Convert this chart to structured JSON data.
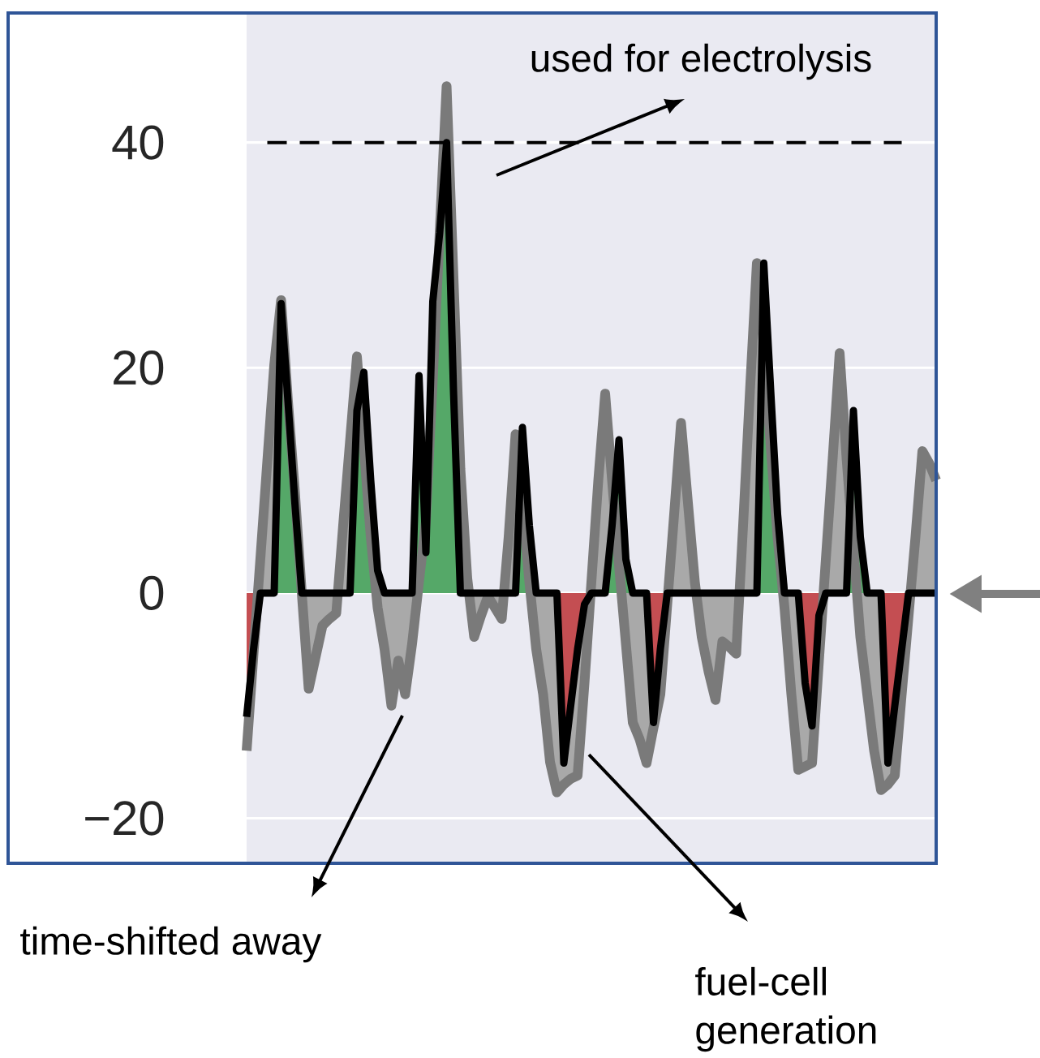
{
  "chart_data": {
    "type": "line",
    "categories": [
      null,
      null,
      null,
      null,
      null,
      null,
      null,
      null,
      null,
      null,
      null,
      null,
      null,
      null,
      null,
      null,
      null,
      null,
      null,
      null,
      null,
      null,
      null,
      null,
      null,
      null,
      null,
      null,
      null,
      null,
      null,
      null,
      null,
      null,
      null,
      null,
      null,
      null,
      null,
      null,
      null,
      null,
      null,
      null,
      null,
      null,
      null,
      null,
      null,
      null,
      null,
      null,
      null,
      null,
      null,
      null,
      null,
      null,
      null,
      null,
      null,
      null,
      null,
      null,
      null,
      null,
      null,
      null,
      null,
      null,
      null,
      null,
      null,
      null,
      null,
      null,
      null,
      null,
      null,
      null,
      null,
      null,
      null,
      null,
      null,
      null,
      null,
      null,
      null,
      null,
      null,
      null,
      null,
      null,
      null,
      null,
      null,
      null,
      null,
      null,
      null
    ],
    "ylim": [
      -24,
      51.5
    ],
    "yticks": [
      {
        "value": -20,
        "label": "−20"
      },
      {
        "value": 0,
        "label": "0"
      },
      {
        "value": 20,
        "label": "20"
      },
      {
        "value": 40,
        "label": "40"
      }
    ],
    "grid": "y",
    "ref_lines": [
      {
        "axis": "y",
        "value": 40,
        "color": "#000000",
        "line_style": "dashed"
      }
    ],
    "annotations": [
      "used for electrolysis",
      "time-shifted away",
      "fuel-cell generation"
    ],
    "series": [
      {
        "type": "area",
        "color": "#a9a9a9",
        "values": [
          -14,
          -5.4,
          3.1,
          11.7,
          20.2,
          26,
          17,
          9,
          0,
          -8.5,
          -5.7,
          -2.9,
          -2.3,
          -1.8,
          6,
          13.5,
          21,
          13,
          5,
          -1.3,
          -5,
          -10,
          -6,
          -9,
          -4.5,
          1,
          6.4,
          19,
          32,
          45,
          28,
          11,
          1.3,
          -3.9,
          -2,
          -0.3,
          -1.3,
          -2.3,
          5,
          14.1,
          8,
          1,
          -5,
          -9,
          -15,
          -17.7,
          -17,
          -16.5,
          -16.2,
          -8,
          1,
          10,
          17.7,
          10,
          2.5,
          -4.5,
          -11.5,
          -13,
          -15.1,
          -12,
          -9,
          -1,
          7,
          15.1,
          8,
          1,
          -3.9,
          -7,
          -9.5,
          -4.3,
          -4.8,
          -5.4,
          6,
          18,
          29.3,
          22,
          13,
          5,
          -1.3,
          -9,
          -15.7,
          -15.4,
          -15.1,
          -6,
          3,
          12,
          21.3,
          12,
          4,
          -3.9,
          -9,
          -14,
          -17.5,
          -17,
          -16.2,
          -9,
          -2,
          5,
          12.6,
          11.5,
          10
        ]
      },
      {
        "type": "line",
        "color": "#000000",
        "values": [
          -11,
          -5,
          0,
          0,
          0,
          25.7,
          17,
          8,
          0,
          0,
          0,
          0,
          0,
          0,
          0,
          0,
          16.2,
          19.6,
          10,
          2,
          0,
          0,
          0,
          0,
          0,
          19.3,
          3.6,
          25.9,
          32,
          40,
          18,
          0,
          0,
          0,
          0,
          0,
          0,
          0,
          0,
          0,
          14.7,
          6,
          0,
          0,
          0,
          0,
          -15.1,
          -10,
          -5,
          -1,
          0,
          0,
          0,
          6,
          13.6,
          3,
          0,
          0,
          0,
          -11.5,
          -5,
          0,
          0,
          0,
          0,
          0,
          0,
          0,
          0,
          0,
          0,
          0,
          0,
          0,
          0,
          29.3,
          18,
          7,
          0,
          0,
          0,
          -8,
          -11.8,
          -2,
          0,
          0,
          0,
          0,
          16.2,
          5,
          0,
          0,
          0,
          -15.1,
          -10,
          -5,
          0,
          0,
          0,
          0,
          0
        ]
      },
      {
        "type": "area",
        "color": "#55a868",
        "values": [
          null,
          null,
          null,
          null,
          0,
          25.7,
          17,
          8,
          0,
          null,
          null,
          null,
          null,
          null,
          null,
          0,
          16.2,
          19.6,
          10,
          2,
          0,
          null,
          null,
          null,
          0,
          19.3,
          3.6,
          25.9,
          32,
          40,
          18,
          0,
          null,
          null,
          null,
          null,
          null,
          null,
          null,
          0,
          14.7,
          6,
          0,
          null,
          null,
          null,
          null,
          null,
          null,
          null,
          null,
          null,
          0,
          6,
          13.6,
          3,
          0,
          null,
          null,
          null,
          null,
          null,
          null,
          null,
          null,
          null,
          null,
          null,
          null,
          null,
          null,
          null,
          null,
          null,
          0,
          29.3,
          18,
          7,
          0,
          null,
          null,
          null,
          null,
          null,
          null,
          null,
          null,
          0,
          16.2,
          5,
          0,
          null,
          null,
          null,
          null,
          null,
          null,
          null,
          null,
          null,
          null
        ]
      },
      {
        "type": "area",
        "color": "#c44e52",
        "values": [
          -11,
          -5,
          0,
          null,
          null,
          null,
          null,
          null,
          null,
          null,
          null,
          null,
          null,
          null,
          null,
          null,
          null,
          null,
          null,
          null,
          null,
          null,
          null,
          null,
          null,
          null,
          null,
          null,
          null,
          null,
          null,
          null,
          null,
          null,
          null,
          null,
          null,
          null,
          null,
          null,
          null,
          null,
          null,
          null,
          null,
          0,
          -15.1,
          -10,
          -5,
          -1,
          0,
          null,
          null,
          null,
          null,
          null,
          null,
          null,
          0,
          -11.5,
          -5,
          0,
          null,
          null,
          null,
          null,
          null,
          null,
          null,
          null,
          null,
          null,
          null,
          null,
          null,
          null,
          null,
          null,
          null,
          null,
          0,
          -8,
          -11.8,
          -2,
          0,
          null,
          null,
          null,
          null,
          null,
          null,
          null,
          0,
          -15.1,
          -10,
          -5,
          0,
          null,
          null,
          null,
          null
        ]
      }
    ]
  }
}
